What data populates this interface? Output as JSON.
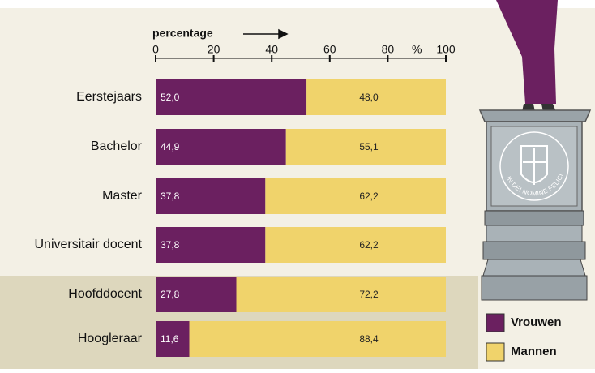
{
  "chart_data": {
    "type": "stacked-bar-horizontal",
    "x_label": "percentage",
    "unit_label": "%",
    "categories": [
      "Eerstejaars",
      "Bachelor",
      "Master",
      "Universitair docent",
      "Hoofddocent",
      "Hoogleraar"
    ],
    "series": [
      {
        "name": "Vrouwen",
        "color": "#6b2060",
        "values": [
          52.0,
          44.9,
          37.8,
          37.8,
          27.8,
          11.6
        ],
        "value_labels": [
          "52,0",
          "44,9",
          "37,8",
          "37,8",
          "27,8",
          "11,6"
        ]
      },
      {
        "name": "Mannen",
        "color": "#f0d36b",
        "values": [
          48.0,
          55.1,
          62.2,
          62.2,
          72.2,
          88.4
        ],
        "value_labels": [
          "48,0",
          "55,1",
          "62,2",
          "62,2",
          "72,2",
          "88,4"
        ]
      }
    ],
    "xlim": [
      0,
      100
    ],
    "xticks": [
      0,
      20,
      40,
      60,
      80,
      100
    ],
    "legend": "bottom-right"
  },
  "illustration": {
    "motto": "IN DEI NOMINE FELICITER"
  }
}
